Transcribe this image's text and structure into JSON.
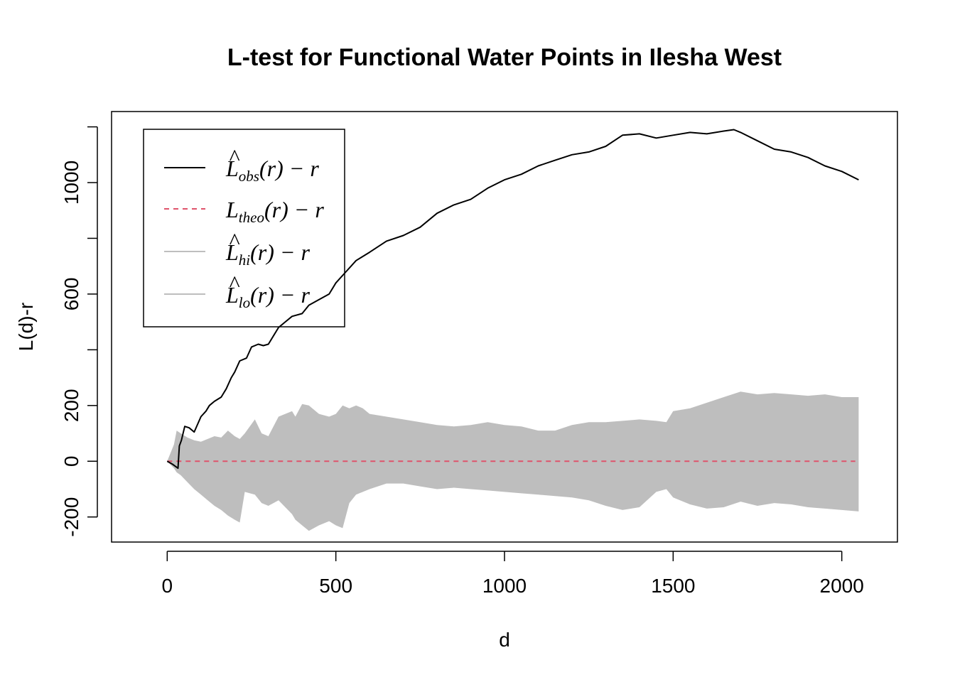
{
  "chart_data": {
    "type": "line",
    "title": "L-test for Functional Water Points in Ilesha West",
    "xlabel": "d",
    "ylabel": "L(d)-r",
    "xlim": [
      -165,
      2165
    ],
    "ylim": [
      -290,
      1255
    ],
    "x_ticks": [
      0,
      500,
      1000,
      1500,
      2000
    ],
    "x_tick_labels": [
      "0",
      "500",
      "1000",
      "1500",
      "2000"
    ],
    "y_ticks": [
      -200,
      0,
      200,
      400,
      600,
      800,
      1000,
      1200
    ],
    "y_tick_labels": [
      "-200",
      "0",
      "200",
      "",
      "600",
      "",
      "1000",
      ""
    ],
    "grid": false,
    "legend_position": "top-left",
    "legend": [
      {
        "main": "L",
        "hat": true,
        "sub": "obs",
        "tail": "(r) − r",
        "style": "solid",
        "color": "#000000"
      },
      {
        "main": "L",
        "hat": false,
        "sub": "theo",
        "tail": "(r) − r",
        "style": "dashed",
        "color": "#DF536B"
      },
      {
        "main": "L",
        "hat": true,
        "sub": "hi",
        "tail": "(r) − r",
        "style": "solid",
        "color": "#BEBEBE"
      },
      {
        "main": "L",
        "hat": true,
        "sub": "lo",
        "tail": "(r) − r",
        "style": "solid",
        "color": "#BEBEBE"
      }
    ],
    "series": [
      {
        "name": "obs",
        "color": "#000000",
        "x": [
          0,
          15,
          32,
          36,
          42,
          52,
          65,
          80,
          100,
          115,
          125,
          140,
          160,
          175,
          190,
          200,
          215,
          235,
          250,
          270,
          285,
          300,
          330,
          350,
          370,
          400,
          420,
          450,
          480,
          500,
          530,
          560,
          600,
          650,
          700,
          750,
          800,
          850,
          900,
          950,
          1000,
          1050,
          1100,
          1150,
          1200,
          1250,
          1300,
          1350,
          1400,
          1450,
          1500,
          1550,
          1600,
          1650,
          1680,
          1700,
          1750,
          1800,
          1850,
          1900,
          1950,
          2000,
          2050
        ],
        "values": [
          0,
          -10,
          -25,
          55,
          75,
          125,
          120,
          105,
          160,
          180,
          200,
          215,
          230,
          260,
          300,
          320,
          360,
          370,
          410,
          420,
          415,
          420,
          480,
          500,
          520,
          530,
          560,
          580,
          600,
          640,
          680,
          720,
          750,
          790,
          810,
          840,
          890,
          920,
          940,
          980,
          1010,
          1030,
          1060,
          1080,
          1100,
          1110,
          1130,
          1170,
          1175,
          1160,
          1170,
          1180,
          1175,
          1185,
          1190,
          1180,
          1150,
          1120,
          1110,
          1090,
          1060,
          1040,
          1010
        ]
      },
      {
        "name": "theo",
        "color": "#DF536B",
        "x": [
          0,
          2040
        ],
        "values": [
          0,
          0
        ]
      }
    ],
    "envelope": {
      "color": "#BEBEBE",
      "x": [
        0,
        20,
        28,
        40,
        60,
        80,
        100,
        120,
        140,
        160,
        180,
        200,
        215,
        230,
        260,
        280,
        300,
        330,
        350,
        370,
        380,
        400,
        420,
        450,
        480,
        500,
        520,
        540,
        560,
        580,
        600,
        650,
        700,
        750,
        800,
        850,
        900,
        950,
        1000,
        1050,
        1100,
        1150,
        1200,
        1250,
        1300,
        1350,
        1400,
        1450,
        1480,
        1500,
        1550,
        1600,
        1650,
        1700,
        1750,
        1800,
        1850,
        1900,
        1950,
        2000,
        2050
      ],
      "hi": [
        0,
        60,
        110,
        100,
        85,
        75,
        70,
        80,
        90,
        85,
        110,
        90,
        80,
        100,
        150,
        100,
        90,
        160,
        170,
        180,
        160,
        205,
        200,
        170,
        160,
        170,
        200,
        190,
        200,
        190,
        170,
        160,
        150,
        140,
        130,
        125,
        130,
        140,
        130,
        125,
        110,
        110,
        130,
        140,
        140,
        145,
        150,
        145,
        140,
        180,
        190,
        210,
        230,
        250,
        240,
        245,
        240,
        235,
        240,
        230,
        230
      ],
      "lo": [
        0,
        -25,
        -40,
        -50,
        -75,
        -100,
        -120,
        -140,
        -160,
        -175,
        -195,
        -210,
        -220,
        -110,
        -120,
        -150,
        -160,
        -140,
        -165,
        -190,
        -210,
        -230,
        -250,
        -230,
        -215,
        -230,
        -240,
        -150,
        -120,
        -110,
        -100,
        -80,
        -80,
        -90,
        -100,
        -95,
        -100,
        -105,
        -110,
        -115,
        -120,
        -125,
        -130,
        -140,
        -160,
        -175,
        -165,
        -110,
        -100,
        -130,
        -155,
        -170,
        -165,
        -145,
        -160,
        -150,
        -155,
        -165,
        -170,
        -175,
        -180
      ]
    }
  }
}
